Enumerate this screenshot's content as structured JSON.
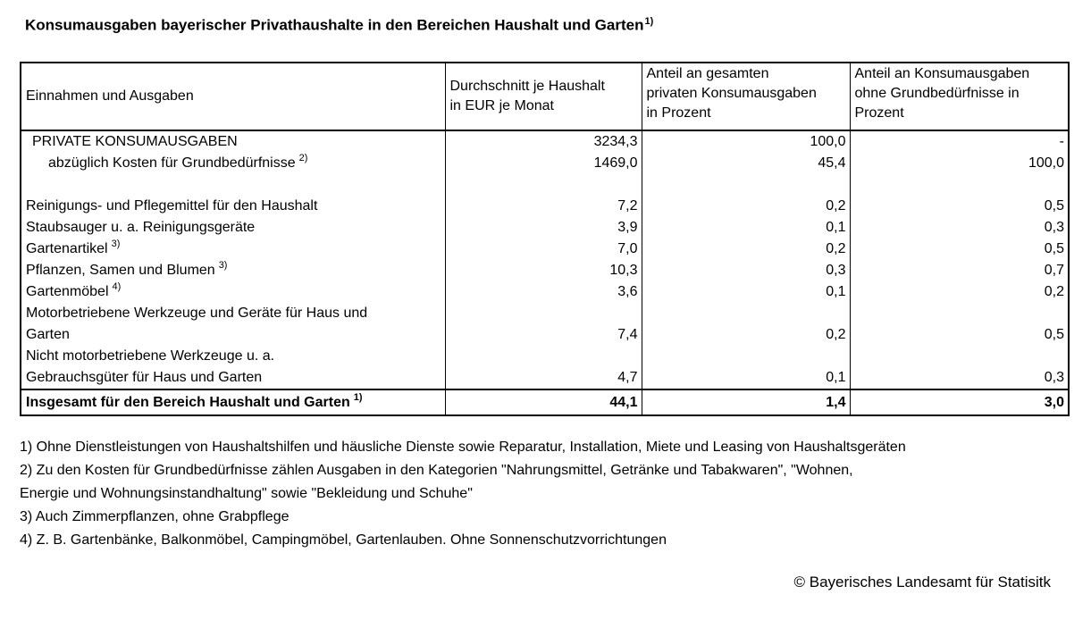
{
  "title": {
    "text": "Konsumausgaben bayerischer Privathaushalte in den Bereichen Haushalt und Garten",
    "sup": "1)"
  },
  "table": {
    "columns": [
      {
        "lines": [
          "Einnahmen und Ausgaben"
        ]
      },
      {
        "lines": [
          "Durchschnitt je Haushalt",
          "in EUR je Monat"
        ]
      },
      {
        "lines": [
          "Anteil an gesamten",
          "privaten Konsumausgaben",
          "in Prozent"
        ]
      },
      {
        "lines": [
          "Anteil an Konsumausgaben",
          "ohne Grundbedürfnisse in",
          "Prozent"
        ]
      }
    ],
    "rows": [
      {
        "label": "PRIVATE KONSUMAUSGABEN",
        "sup": "",
        "avg": "3234,3",
        "share_total": "100,0",
        "share_excl": "-"
      },
      {
        "label": "abzüglich Kosten für Grundbedürfnisse",
        "sup": "2)",
        "avg": "1469,0",
        "share_total": "45,4",
        "share_excl": "100,0"
      },
      {
        "label": "",
        "sup": "",
        "avg": "",
        "share_total": "",
        "share_excl": ""
      },
      {
        "label": "Reinigungs- und Pflegemittel für den Haushalt",
        "sup": "",
        "avg": "7,2",
        "share_total": "0,2",
        "share_excl": "0,5"
      },
      {
        "label": "Staubsauger u. a. Reinigungsgeräte",
        "sup": "",
        "avg": "3,9",
        "share_total": "0,1",
        "share_excl": "0,3"
      },
      {
        "label": "Gartenartikel",
        "sup": "3)",
        "avg": "7,0",
        "share_total": "0,2",
        "share_excl": "0,5"
      },
      {
        "label": "Pflanzen, Samen und Blumen",
        "sup": "3)",
        "avg": "10,3",
        "share_total": "0,3",
        "share_excl": "0,7"
      },
      {
        "label": "Gartenmöbel",
        "sup": "4)",
        "avg": "3,6",
        "share_total": "0,1",
        "share_excl": "0,2"
      },
      {
        "label": "Motorbetriebene Werkzeuge und Geräte für Haus und",
        "sup": "",
        "avg": "",
        "share_total": "",
        "share_excl": ""
      },
      {
        "label": "Garten",
        "sup": "",
        "avg": "7,4",
        "share_total": "0,2",
        "share_excl": "0,5"
      },
      {
        "label": "Nicht motorbetriebene Werkzeuge u. a.",
        "sup": "",
        "avg": "",
        "share_total": "",
        "share_excl": ""
      },
      {
        "label": "Gebrauchsgüter für Haus und Garten",
        "sup": "",
        "avg": "4,7",
        "share_total": "0,1",
        "share_excl": "0,3"
      }
    ],
    "total": {
      "label": "Insgesamt für den Bereich Haushalt und Garten",
      "sup": "1)",
      "avg": "44,1",
      "share_total": "1,4",
      "share_excl": "3,0"
    }
  },
  "footnotes": [
    "1) Ohne Dienstleistungen von Haushaltshilfen und häusliche Dienste sowie Reparatur, Installation, Miete und Leasing von Haushaltsgeräten",
    "2) Zu den Kosten für Grundbedürfnisse zählen Ausgaben in den Kategorien \"Nahrungsmittel, Getränke und Tabakwaren\", \"Wohnen,",
    "Energie und Wohnungsinstandhaltung\" sowie \"Bekleidung und Schuhe\"",
    "3) Auch Zimmerpflanzen, ohne Grabpflege",
    "4) Z. B. Gartenbänke, Balkonmöbel, Campingmöbel, Gartenlauben. Ohne Sonnenschutzvorrichtungen"
  ],
  "copyright": "© Bayerisches Landesamt für Statisitk"
}
